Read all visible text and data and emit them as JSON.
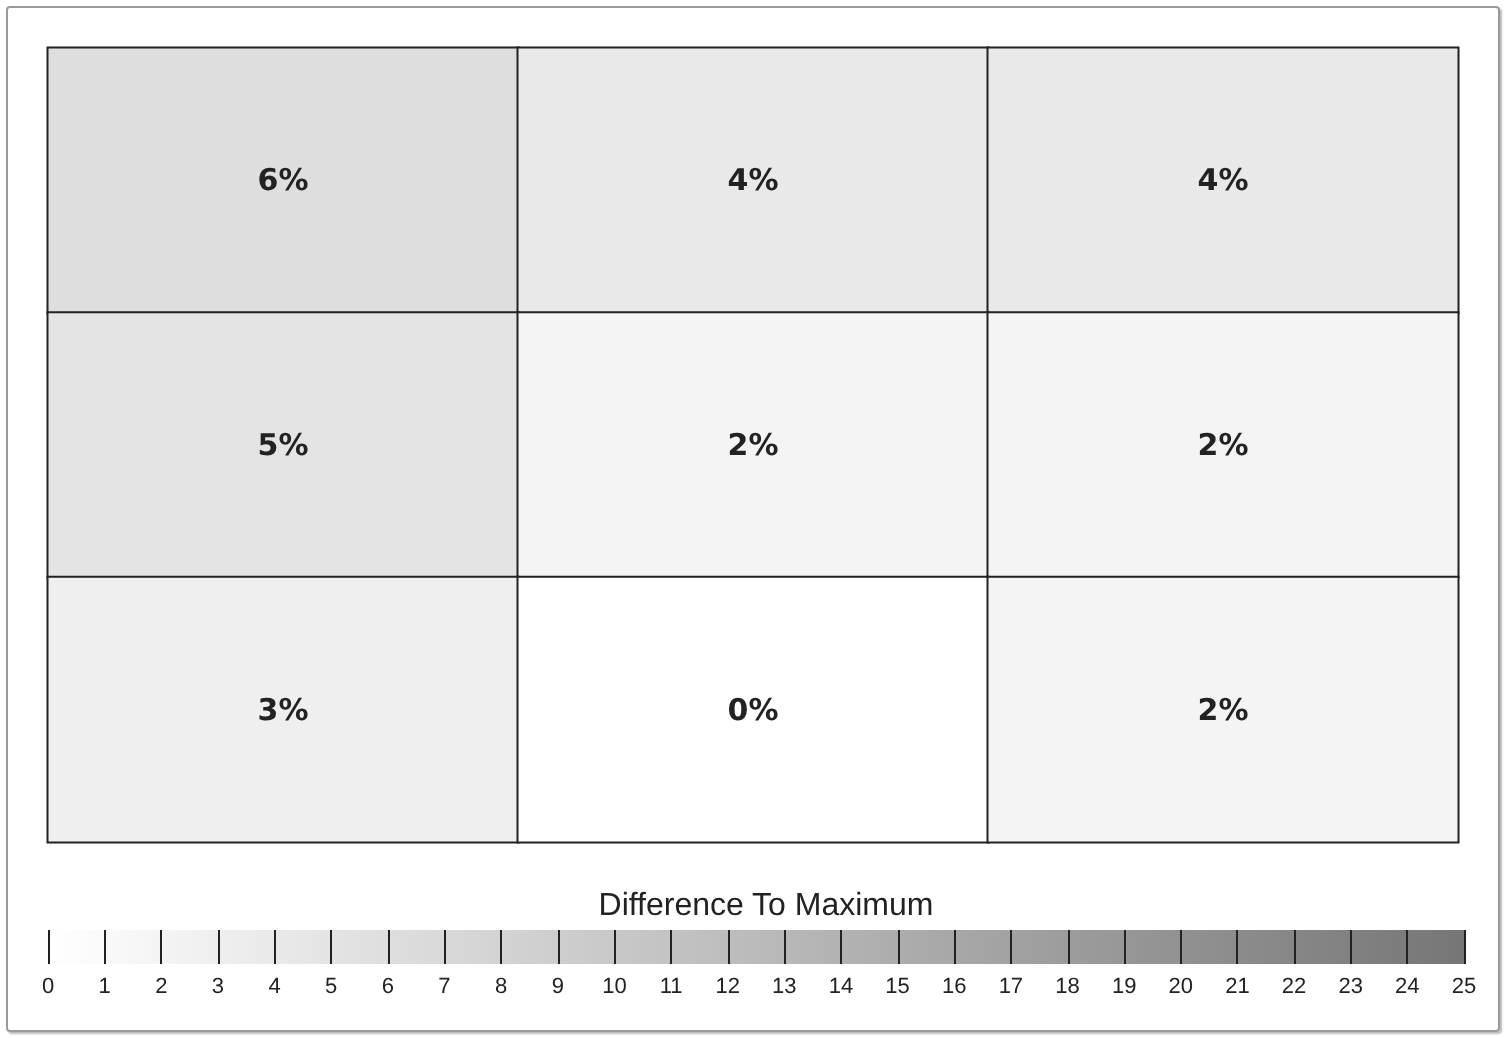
{
  "chart_data": {
    "type": "heatmap",
    "categories": [
      null,
      null,
      null
    ],
    "y_categories": [
      null,
      null,
      null
    ],
    "cells": [
      [
        6,
        4,
        4
      ],
      [
        5,
        2,
        2
      ],
      [
        3,
        0,
        2
      ]
    ],
    "cell_labels": [
      [
        "6%",
        "4%",
        "4%"
      ],
      [
        "5%",
        "2%",
        "2%"
      ],
      [
        "3%",
        "0%",
        "2%"
      ]
    ],
    "clim": [
      0,
      25
    ],
    "cticks": [
      0,
      1,
      2,
      3,
      4,
      5,
      6,
      7,
      8,
      9,
      10,
      11,
      12,
      13,
      14,
      15,
      16,
      17,
      18,
      19,
      20,
      21,
      22,
      23,
      24,
      25
    ],
    "clabel": "Difference To Maximum"
  }
}
